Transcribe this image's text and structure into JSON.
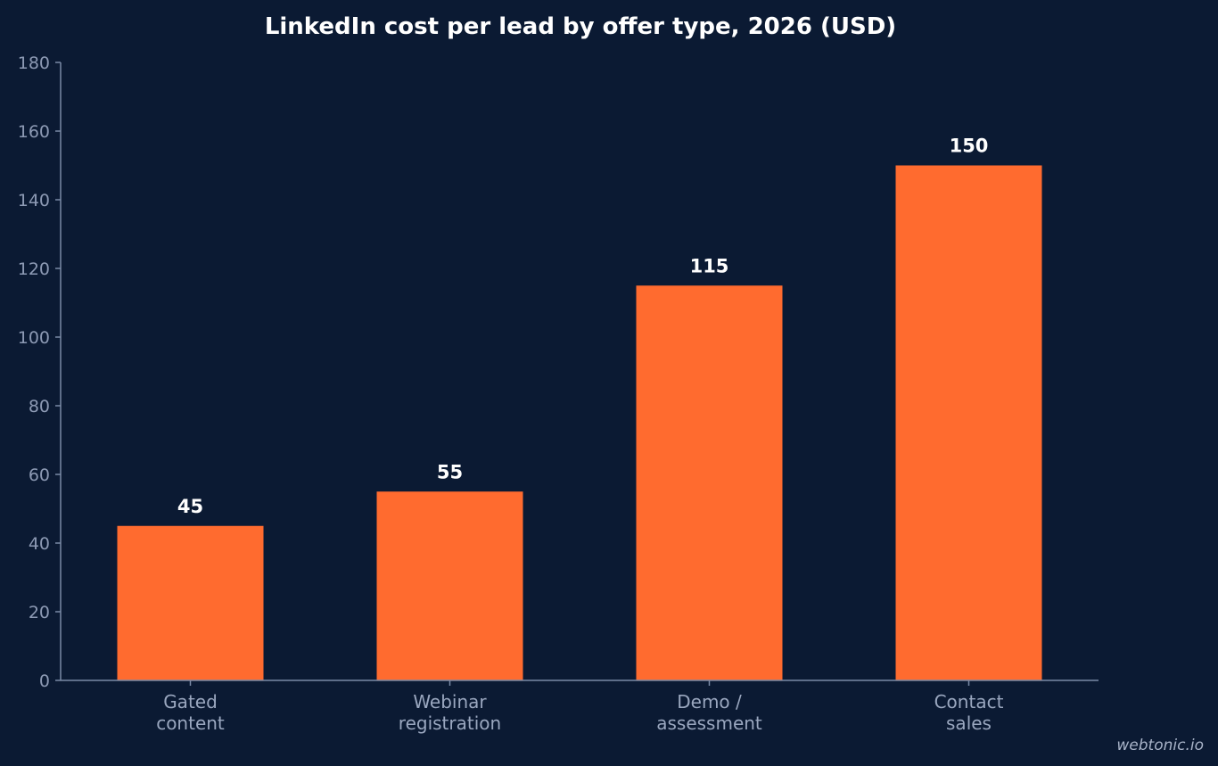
{
  "chart_data": {
    "type": "bar",
    "title": "LinkedIn cost per lead by offer type, 2026 (USD)",
    "xlabel": "",
    "ylabel": "",
    "categories": [
      [
        "Gated",
        "content"
      ],
      [
        "Webinar",
        "registration"
      ],
      [
        "Demo /",
        "assessment"
      ],
      [
        "Contact",
        "sales"
      ]
    ],
    "values": [
      45,
      55,
      115,
      150
    ],
    "data_labels": [
      "45",
      "55",
      "115",
      "150"
    ],
    "ylim": [
      0,
      180
    ],
    "yticks": [
      0,
      20,
      40,
      60,
      80,
      100,
      120,
      140,
      160,
      180
    ],
    "grid": false,
    "legend": "none",
    "colors": {
      "background": "#0b1a33",
      "bar": "#ff6b2f",
      "axis": "#7a8aa6",
      "tick_text": "#8d9ab4",
      "category_text": "#9aa7bf",
      "label_text": "#ffffff"
    }
  },
  "watermark": "webtonic.io"
}
